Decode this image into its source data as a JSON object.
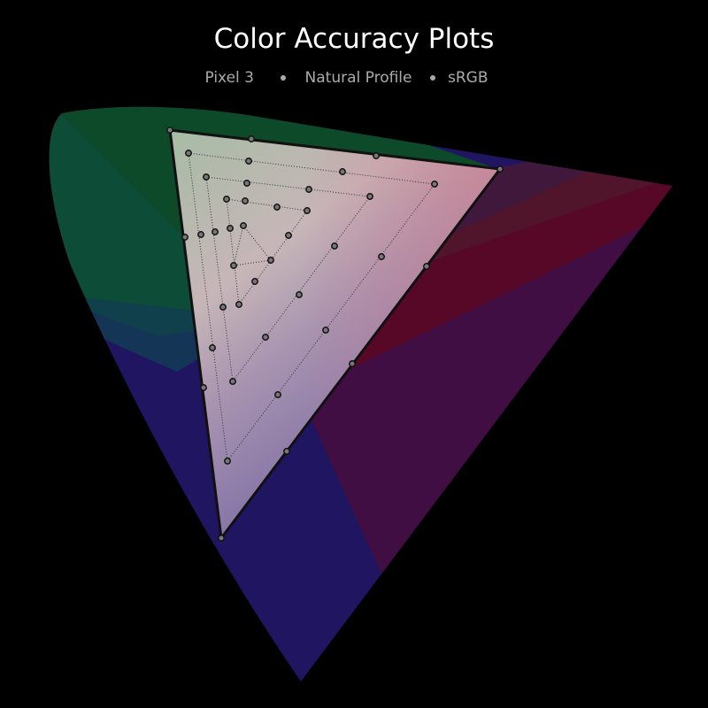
{
  "header": {
    "title": "Color Accuracy Plots",
    "subtitle": [
      "Pixel 3",
      "Natural Profile",
      "sRGB"
    ]
  }
}
